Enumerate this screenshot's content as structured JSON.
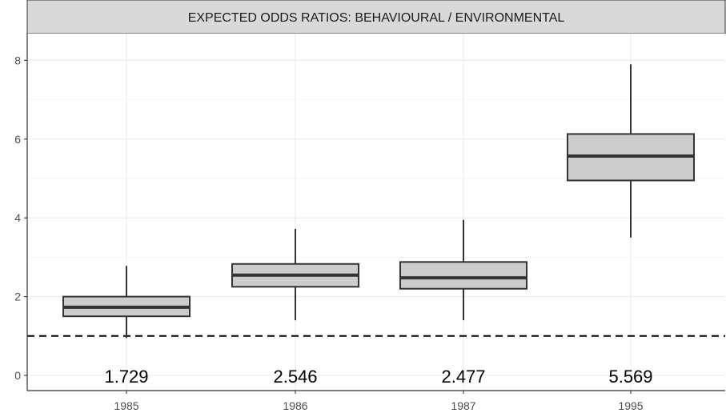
{
  "chart_data": {
    "type": "boxplot",
    "title": "EXPECTED ODDS RATIOS: BEHAVIOURAL / ENVIRONMENTAL",
    "categories": [
      "1985",
      "1986",
      "1987",
      "1995"
    ],
    "boxes": [
      {
        "category": "1985",
        "min": 0.95,
        "q1": 1.5,
        "median": 1.729,
        "q3": 2.0,
        "max": 2.78,
        "label": "1.729"
      },
      {
        "category": "1986",
        "min": 1.4,
        "q1": 2.25,
        "median": 2.546,
        "q3": 2.83,
        "max": 3.72,
        "label": "2.546"
      },
      {
        "category": "1987",
        "min": 1.4,
        "q1": 2.2,
        "median": 2.477,
        "q3": 2.88,
        "max": 3.95,
        "label": "2.477"
      },
      {
        "category": "1995",
        "min": 3.5,
        "q1": 4.95,
        "median": 5.569,
        "q3": 6.13,
        "max": 7.9,
        "label": "5.569"
      }
    ],
    "reference_line": {
      "y": 1,
      "style": "dashed"
    },
    "yticks": [
      0,
      2,
      4,
      6,
      8
    ],
    "ylim": [
      -0.35,
      8.72
    ],
    "grid": true,
    "colors": {
      "box_fill": "#cccccc",
      "box_stroke": "#333333",
      "strip_fill": "#d9d9d9",
      "grid": "#ebebeb"
    }
  }
}
